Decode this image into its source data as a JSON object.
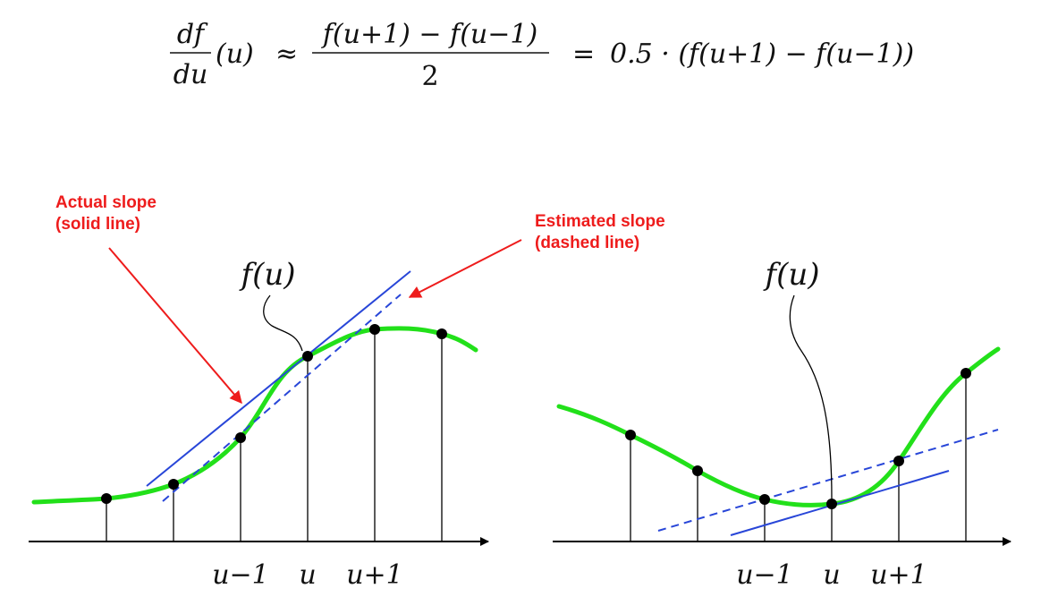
{
  "formula": {
    "numer_left": "df",
    "denom_left": "du",
    "arg_left": "(u)",
    "approx": "≈",
    "numer_right": "f(u+1) − f(u−1)",
    "denom_right": "2",
    "equals": "=",
    "rhs": "0.5 · (f(u+1) − f(u−1))"
  },
  "annotations": {
    "actual_slope_line1": "Actual slope",
    "actual_slope_line2": "(solid line)",
    "estimated_slope_line1": "Estimated slope",
    "estimated_slope_line2": "(dashed line)",
    "color": "#ee1c1c"
  },
  "colors": {
    "curve": "#22e01a",
    "tangent": "#2846d8",
    "axis": "#000000"
  },
  "left_panel": {
    "fu_label": "f(u)",
    "tick_labels": {
      "u_minus_1": "u−1",
      "u": "u",
      "u_plus_1": "u+1"
    }
  },
  "right_panel": {
    "fu_label": "f(u)",
    "tick_labels": {
      "u_minus_1": "u−1",
      "u": "u",
      "u_plus_1": "u+1"
    }
  }
}
